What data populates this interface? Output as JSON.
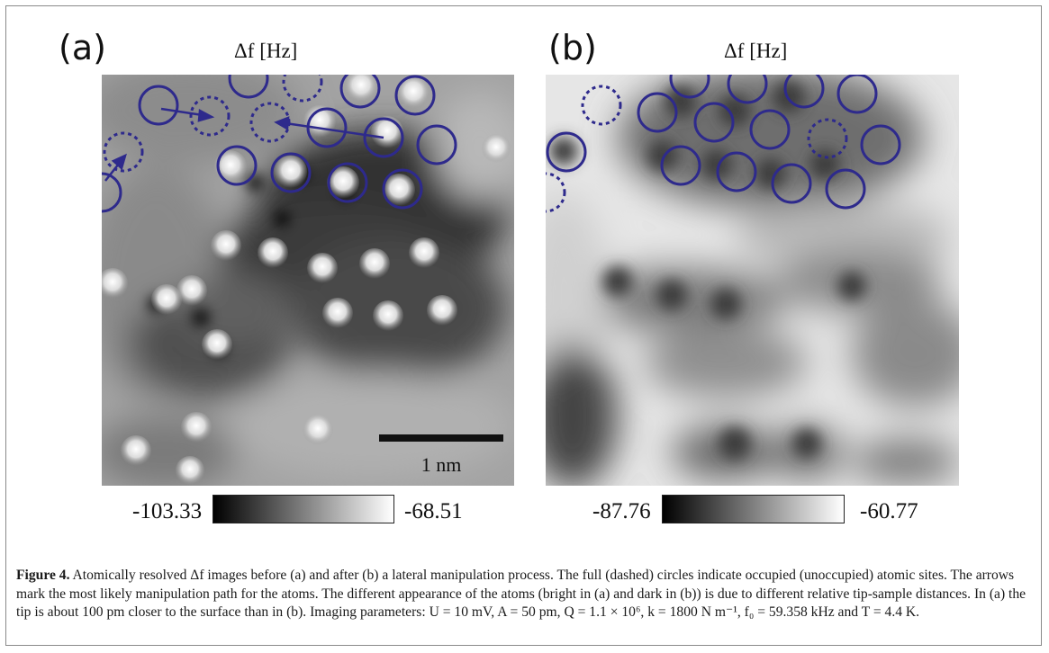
{
  "panels": [
    {
      "label": "(a)",
      "colorbar_title": "Δf [Hz]",
      "colorbar_min": "-103.33",
      "colorbar_max": "-68.51",
      "scalebar_label": "1 nm"
    },
    {
      "label": "(b)",
      "colorbar_title": "Δf [Hz]",
      "colorbar_min": "-87.76",
      "colorbar_max": "-60.77"
    }
  ],
  "caption": {
    "figure_label": "Figure 4.",
    "text": "Atomically resolved Δf images before (a) and after (b) a lateral manipulation process. The full (dashed) circles indicate occupied (unoccupied) atomic sites. The arrows mark the most likely manipulation path for the atoms. The different appearance of the atoms (bright in (a) and dark in (b)) is due to different relative tip-sample distances. In (a) the tip is about 100 pm closer to the surface than in (b). Imaging parameters: U = 10 mV, A = 50 pm, Q = 1.1 × 10⁶, k = 1800 N m⁻¹, f₀ = 59.358 kHz and T = 4.4 K."
  },
  "colors": {
    "circle": "#2e2a8c",
    "frame": "#8a8a8a"
  }
}
